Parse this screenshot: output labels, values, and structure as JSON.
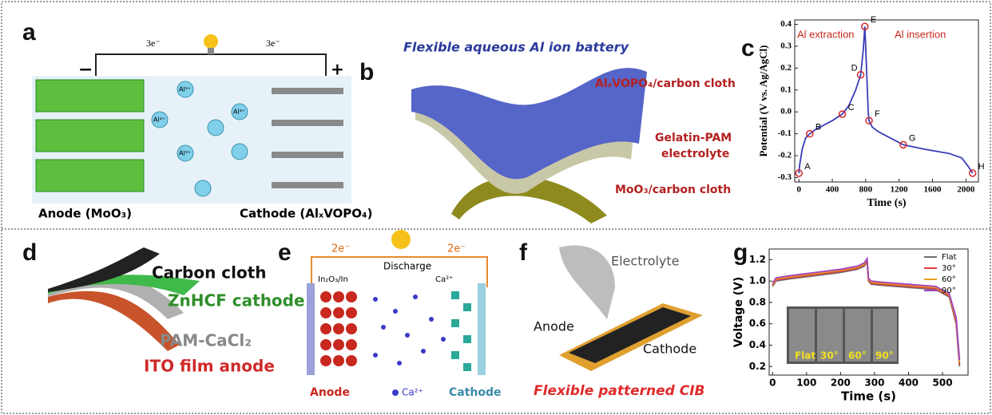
{
  "panels": {
    "a": {
      "letter": "a",
      "electron": "3e⁻",
      "ion": "Al³⁺",
      "anode": "Anode (MoO₃)",
      "cathode": "Cathode (AlₓVOPO₄)",
      "minus": "−",
      "plus": "+"
    },
    "b": {
      "letter": "b",
      "title": "Flexible aqueous Al ion battery",
      "layer1": "AlₓVOPO₄/carbon cloth",
      "layer2a": "Gelatin-PAM",
      "layer2b": "electrolyte",
      "layer3": "MoO₃/carbon cloth"
    },
    "c": {
      "letter": "c"
    },
    "d": {
      "letter": "d",
      "l1": "Carbon cloth",
      "l2": "ZnHCF cathode",
      "l3": "PAM-CaCl₂",
      "l4": "ITO film anode"
    },
    "e": {
      "letter": "e",
      "electron": "2e⁻",
      "discharge": "Discharge",
      "in": "In₂O₃/In",
      "ca": "Ca²⁺",
      "anode": "Anode",
      "legend": "Ca²⁺",
      "cathode": "Cathode"
    },
    "f": {
      "letter": "f",
      "electrolyte": "Electrolyte",
      "anode": "Anode",
      "cathode": "Cathode",
      "caption": "Flexible patterned CIB"
    },
    "g": {
      "letter": "g",
      "inset_labels": [
        "Flat",
        "30°",
        "60°",
        "90°"
      ]
    }
  },
  "chart_data": [
    {
      "type": "line",
      "ylabel": "Potential (V vs. Ag/AgCl)",
      "xlabel": "Time (s)",
      "annotations": [
        "Al extraction",
        "Al insertion"
      ],
      "x": [
        0,
        10,
        40,
        80,
        130,
        200,
        300,
        400,
        520,
        600,
        680,
        740,
        770,
        790,
        810,
        830,
        840,
        880,
        950,
        1050,
        1250,
        1500,
        1800,
        1950,
        2030,
        2080
      ],
      "series": [
        {
          "color": "#3a3db8",
          "values": [
            -0.28,
            -0.24,
            -0.17,
            -0.12,
            -0.1,
            -0.08,
            -0.06,
            -0.04,
            -0.01,
            0.03,
            0.1,
            0.17,
            0.28,
            0.39,
            0.2,
            0.0,
            -0.04,
            -0.07,
            -0.09,
            -0.11,
            -0.15,
            -0.17,
            -0.19,
            -0.21,
            -0.25,
            -0.28
          ]
        }
      ],
      "markers": {
        "color": "#d0262b",
        "labels": [
          "A",
          "B",
          "C",
          "D",
          "E",
          "F",
          "G",
          "H"
        ],
        "x": [
          0,
          130,
          520,
          740,
          790,
          840,
          1250,
          2080
        ],
        "y": [
          -0.28,
          -0.1,
          -0.01,
          0.17,
          0.39,
          -0.04,
          -0.15,
          -0.28
        ]
      },
      "xlim": [
        -50,
        2150
      ],
      "ylim": [
        -0.32,
        0.42
      ],
      "xticks": [
        0,
        400,
        800,
        1200,
        1600,
        2000
      ],
      "yticks": [
        -0.3,
        -0.2,
        -0.1,
        {
          "value": 0,
          "label": "0.0"
        },
        0.1,
        0.2,
        0.3,
        0.4
      ]
    },
    {
      "type": "line",
      "ylabel": "Voltage (V)",
      "xlabel": "Time (s)",
      "legend": "upper right",
      "x": [
        0,
        10,
        50,
        100,
        150,
        200,
        250,
        270,
        278,
        282,
        290,
        320,
        400,
        480,
        520,
        540,
        550
      ],
      "series": [
        {
          "name": "Flat",
          "color": "#707070",
          "values": [
            0.95,
            1.0,
            1.02,
            1.04,
            1.06,
            1.08,
            1.11,
            1.14,
            1.18,
            1.0,
            0.97,
            0.96,
            0.94,
            0.92,
            0.85,
            0.6,
            0.2
          ]
        },
        {
          "name": "30°",
          "color": "#e03a3a",
          "values": [
            0.96,
            1.01,
            1.03,
            1.05,
            1.07,
            1.09,
            1.12,
            1.15,
            1.19,
            1.01,
            0.98,
            0.97,
            0.95,
            0.93,
            0.86,
            0.62,
            0.22
          ]
        },
        {
          "name": "60°",
          "color": "#e8a020",
          "values": [
            0.97,
            1.02,
            1.04,
            1.06,
            1.08,
            1.1,
            1.13,
            1.16,
            1.2,
            1.02,
            0.99,
            0.98,
            0.96,
            0.94,
            0.87,
            0.64,
            0.24
          ]
        },
        {
          "name": "90°",
          "color": "#a040c0",
          "values": [
            0.98,
            1.03,
            1.05,
            1.07,
            1.09,
            1.11,
            1.14,
            1.17,
            1.21,
            1.03,
            1.0,
            0.99,
            0.97,
            0.95,
            0.88,
            0.66,
            0.26
          ]
        }
      ],
      "xlim": [
        -10,
        575
      ],
      "ylim": [
        0.12,
        1.3
      ],
      "xticks": [
        0,
        100,
        200,
        300,
        400,
        500
      ],
      "yticks": [
        0.2,
        0.4,
        0.6,
        0.8,
        {
          "value": 1,
          "label": "1.0"
        },
        1.2
      ]
    }
  ]
}
